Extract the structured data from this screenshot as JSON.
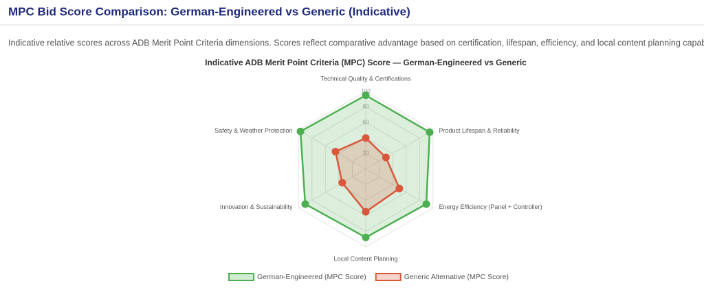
{
  "header": {
    "title": "MPC Bid Score Comparison: German-Engineered vs Generic (Indicative)",
    "description": "Indicative relative scores across ADB Merit Point Criteria dimensions. Scores reflect comparative advantage based on certification, lifespan, efficiency, and local content planning capability."
  },
  "chart_data": {
    "type": "radar",
    "title": "Indicative ADB Merit Point Criteria (MPC) Score — German-Engineered vs Generic",
    "categories": [
      "Technical Quality & Certifications",
      "Product Lifespan & Reliability",
      "Energy Efficiency (Panel + Controller)",
      "Local Content Planning",
      "Innovation & Sustainability",
      "Safety & Weather Protection"
    ],
    "series": [
      {
        "name": "German-Engineered (MPC Score)",
        "color": "#4caf50",
        "values": [
          95,
          95,
          90,
          88,
          90,
          97
        ]
      },
      {
        "name": "Generic Alternative (MPC Score)",
        "color": "#d9573b",
        "values": [
          40,
          30,
          50,
          55,
          35,
          45
        ]
      }
    ],
    "rlim": [
      0,
      100
    ],
    "rticks": [
      20,
      40,
      60,
      80,
      100
    ],
    "legend": "bottom"
  }
}
